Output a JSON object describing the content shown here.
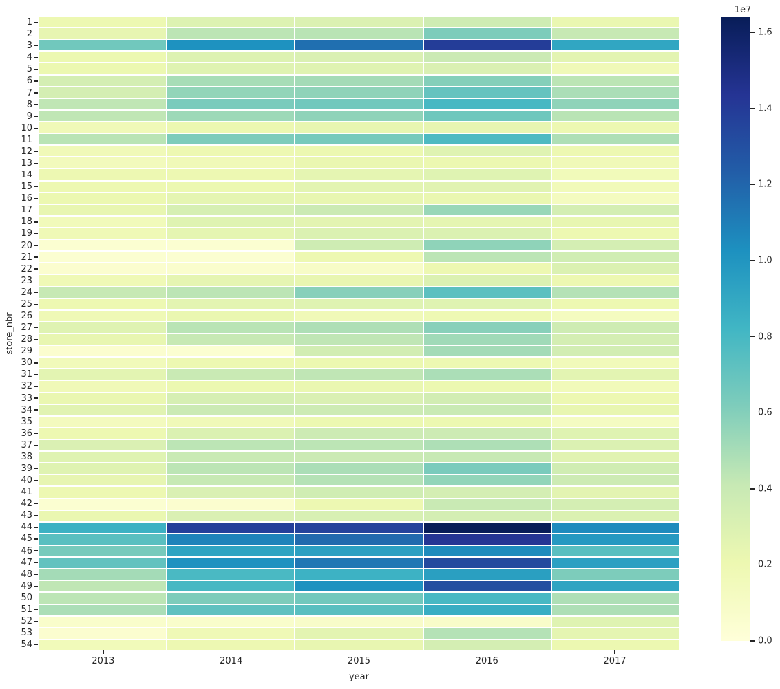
{
  "figure": {
    "background": "#ffffff",
    "text_color": "#262626"
  },
  "chart_data": {
    "type": "heatmap",
    "title": "",
    "xlabel": "year",
    "ylabel": "store_nbr",
    "x": [
      "2013",
      "2014",
      "2015",
      "2016",
      "2017"
    ],
    "y": [
      "1",
      "2",
      "3",
      "4",
      "5",
      "6",
      "7",
      "8",
      "9",
      "10",
      "11",
      "12",
      "13",
      "14",
      "15",
      "16",
      "17",
      "18",
      "19",
      "20",
      "21",
      "22",
      "23",
      "24",
      "25",
      "26",
      "27",
      "28",
      "29",
      "30",
      "31",
      "32",
      "33",
      "34",
      "35",
      "36",
      "37",
      "38",
      "39",
      "40",
      "41",
      "42",
      "43",
      "44",
      "45",
      "46",
      "47",
      "48",
      "49",
      "50",
      "51",
      "52",
      "53",
      "54"
    ],
    "values_unit": "1e7",
    "vmin": 0.0,
    "vmax": 1.64,
    "grid_line_color": "#ffffff",
    "colormap_name": "YlGnBu",
    "colormap_anchors": [
      "#ffffd9",
      "#edf8b1",
      "#c7e9b4",
      "#7fcdbb",
      "#41b6c4",
      "#1d91c0",
      "#225ea8",
      "#253494",
      "#081d58"
    ],
    "values": [
      [
        0.2,
        0.29,
        0.3,
        0.37,
        0.22
      ],
      [
        0.24,
        0.44,
        0.45,
        0.62,
        0.41
      ],
      [
        0.66,
        1.02,
        1.16,
        1.39,
        0.91
      ],
      [
        0.21,
        0.29,
        0.31,
        0.39,
        0.26
      ],
      [
        0.21,
        0.28,
        0.28,
        0.31,
        0.17
      ],
      [
        0.34,
        0.5,
        0.51,
        0.6,
        0.44
      ],
      [
        0.34,
        0.56,
        0.57,
        0.7,
        0.49
      ],
      [
        0.43,
        0.63,
        0.66,
        0.8,
        0.57
      ],
      [
        0.43,
        0.53,
        0.57,
        0.67,
        0.45
      ],
      [
        0.17,
        0.21,
        0.23,
        0.24,
        0.2
      ],
      [
        0.45,
        0.62,
        0.64,
        0.78,
        0.48
      ],
      [
        0.17,
        0.2,
        0.21,
        0.28,
        0.2
      ],
      [
        0.15,
        0.17,
        0.22,
        0.21,
        0.17
      ],
      [
        0.2,
        0.2,
        0.25,
        0.28,
        0.16
      ],
      [
        0.2,
        0.21,
        0.26,
        0.27,
        0.16
      ],
      [
        0.21,
        0.25,
        0.23,
        0.22,
        0.13
      ],
      [
        0.23,
        0.33,
        0.39,
        0.54,
        0.34
      ],
      [
        0.16,
        0.28,
        0.26,
        0.25,
        0.23
      ],
      [
        0.18,
        0.25,
        0.3,
        0.3,
        0.2
      ],
      [
        0.04,
        0.04,
        0.37,
        0.57,
        0.34
      ],
      [
        0.04,
        0.04,
        0.2,
        0.44,
        0.36
      ],
      [
        0.05,
        0.06,
        0.09,
        0.2,
        0.3
      ],
      [
        0.18,
        0.25,
        0.23,
        0.3,
        0.2
      ],
      [
        0.41,
        0.44,
        0.59,
        0.73,
        0.46
      ],
      [
        0.2,
        0.26,
        0.28,
        0.28,
        0.2
      ],
      [
        0.18,
        0.22,
        0.17,
        0.19,
        0.13
      ],
      [
        0.28,
        0.45,
        0.48,
        0.59,
        0.37
      ],
      [
        0.23,
        0.41,
        0.43,
        0.52,
        0.34
      ],
      [
        0.05,
        0.04,
        0.35,
        0.51,
        0.35
      ],
      [
        0.16,
        0.2,
        0.21,
        0.2,
        0.16
      ],
      [
        0.26,
        0.4,
        0.43,
        0.49,
        0.26
      ],
      [
        0.17,
        0.21,
        0.22,
        0.21,
        0.16
      ],
      [
        0.22,
        0.33,
        0.31,
        0.35,
        0.2
      ],
      [
        0.27,
        0.39,
        0.38,
        0.4,
        0.23
      ],
      [
        0.14,
        0.17,
        0.21,
        0.21,
        0.12
      ],
      [
        0.2,
        0.3,
        0.38,
        0.38,
        0.28
      ],
      [
        0.31,
        0.44,
        0.44,
        0.48,
        0.3
      ],
      [
        0.28,
        0.4,
        0.39,
        0.41,
        0.27
      ],
      [
        0.28,
        0.44,
        0.49,
        0.63,
        0.36
      ],
      [
        0.24,
        0.41,
        0.46,
        0.56,
        0.38
      ],
      [
        0.2,
        0.31,
        0.36,
        0.34,
        0.26
      ],
      [
        0.04,
        0.05,
        0.2,
        0.4,
        0.34
      ],
      [
        0.22,
        0.31,
        0.32,
        0.34,
        0.3
      ],
      [
        0.85,
        1.38,
        1.36,
        1.64,
        1.05
      ],
      [
        0.74,
        1.08,
        1.18,
        1.43,
        0.98
      ],
      [
        0.64,
        0.92,
        0.94,
        1.05,
        0.74
      ],
      [
        0.71,
        1.02,
        1.13,
        1.33,
        0.94
      ],
      [
        0.51,
        0.79,
        0.84,
        0.95,
        0.62
      ],
      [
        0.43,
        0.8,
        1.02,
        1.31,
        0.92
      ],
      [
        0.44,
        0.62,
        0.66,
        0.8,
        0.48
      ],
      [
        0.49,
        0.72,
        0.74,
        0.87,
        0.48
      ],
      [
        0.07,
        0.07,
        0.08,
        0.08,
        0.28
      ],
      [
        0.05,
        0.18,
        0.26,
        0.46,
        0.25
      ],
      [
        0.16,
        0.2,
        0.23,
        0.34,
        0.21
      ]
    ],
    "colorbar": {
      "title": "1e7",
      "ticks": [
        0.0,
        0.2,
        0.4,
        0.6,
        0.8,
        1.0,
        1.2,
        1.4,
        1.6
      ],
      "position": "right"
    },
    "legend_position": "right",
    "grid": false
  }
}
